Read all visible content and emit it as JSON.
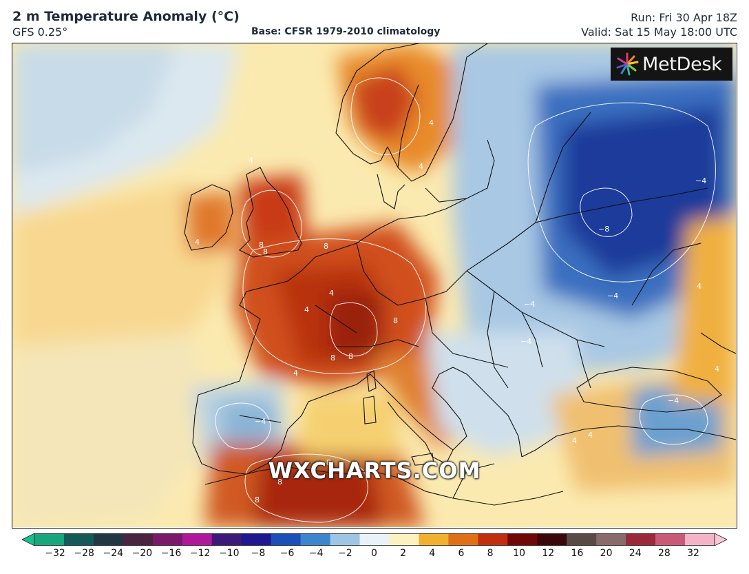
{
  "header": {
    "title": "2 m Temperature Anomaly (°C)",
    "model": "GFS 0.25°",
    "base": "Base: CFSR 1979-2010 climatology",
    "run": "Run: Fri 30 Apr 18Z",
    "valid": "Valid: Sat 15 May 18:00 UTC"
  },
  "logo": {
    "text": "MetDesk",
    "icon": "metdesk-starburst-icon"
  },
  "watermark": "WXCHARTS.COM",
  "colorbar": {
    "ticks": [
      "−32",
      "−28",
      "−24",
      "−20",
      "−16",
      "−12",
      "−10",
      "−8",
      "−6",
      "−4",
      "−2",
      "0",
      "2",
      "4",
      "6",
      "8",
      "10",
      "12",
      "16",
      "20",
      "24",
      "28",
      "32"
    ],
    "colors": [
      "#1aa67d",
      "#155a58",
      "#213844",
      "#4a2440",
      "#7a1a6a",
      "#b0189a",
      "#3d1a78",
      "#1f1890",
      "#1c50b8",
      "#3d86cc",
      "#9fc4e4",
      "#e8f2f8",
      "#fbf2c0",
      "#f0b030",
      "#e07018",
      "#c03010",
      "#700808",
      "#3a0808",
      "#5a4a46",
      "#8a6a6a",
      "#9a2a3a",
      "#c85a78",
      "#f4b4c8"
    ],
    "min_color": "#18c090",
    "max_color": "#f8c8d8"
  },
  "contour_labels": [
    "4",
    "4",
    "4",
    "4",
    "8",
    "8",
    "8",
    "4",
    "4",
    "8",
    "8",
    "8",
    "−4",
    "−4",
    "−4",
    "−8",
    "−4",
    "4",
    "4",
    "−4",
    "4",
    "8",
    "8",
    "8",
    "4",
    "4",
    "−4"
  ]
}
